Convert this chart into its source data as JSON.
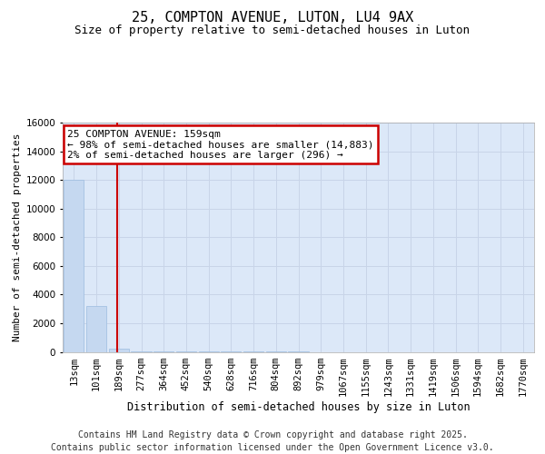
{
  "title": "25, COMPTON AVENUE, LUTON, LU4 9AX",
  "subtitle": "Size of property relative to semi-detached houses in Luton",
  "xlabel": "Distribution of semi-detached houses by size in Luton",
  "ylabel": "Number of semi-detached properties",
  "categories": [
    "13sqm",
    "101sqm",
    "189sqm",
    "277sqm",
    "364sqm",
    "452sqm",
    "540sqm",
    "628sqm",
    "716sqm",
    "804sqm",
    "892sqm",
    "979sqm",
    "1067sqm",
    "1155sqm",
    "1243sqm",
    "1331sqm",
    "1419sqm",
    "1506sqm",
    "1594sqm",
    "1682sqm",
    "1770sqm"
  ],
  "values": [
    12000,
    3200,
    200,
    30,
    10,
    5,
    3,
    2,
    1,
    1,
    1,
    0,
    0,
    0,
    0,
    0,
    0,
    0,
    0,
    0,
    0
  ],
  "bar_color": "#c5d8f0",
  "bar_edgecolor": "#9bbce0",
  "redline_index": 1.92,
  "annotation_title": "25 COMPTON AVENUE: 159sqm",
  "annotation_line1": "← 98% of semi-detached houses are smaller (14,883)",
  "annotation_line2": "2% of semi-detached houses are larger (296) →",
  "annotation_box_color": "#ffffff",
  "annotation_box_edgecolor": "#cc0000",
  "redline_color": "#cc0000",
  "ylim": [
    0,
    16000
  ],
  "yticks": [
    0,
    2000,
    4000,
    6000,
    8000,
    10000,
    12000,
    14000,
    16000
  ],
  "grid_color": "#c8d4e8",
  "fig_background": "#ffffff",
  "plot_background": "#dce8f8",
  "footer_line1": "Contains HM Land Registry data © Crown copyright and database right 2025.",
  "footer_line2": "Contains public sector information licensed under the Open Government Licence v3.0.",
  "title_fontsize": 11,
  "subtitle_fontsize": 9,
  "footer_fontsize": 7,
  "ylabel_fontsize": 8,
  "xlabel_fontsize": 8.5,
  "tick_fontsize": 7.5,
  "annot_fontsize": 8
}
